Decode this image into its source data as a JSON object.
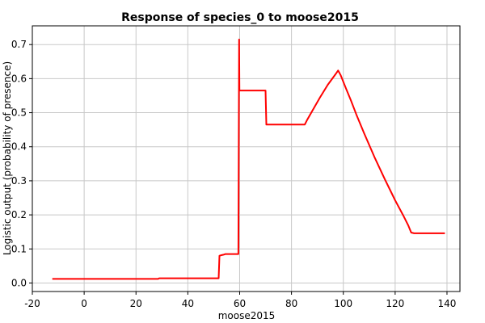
{
  "chart_data": {
    "type": "line",
    "title": "Response of species_0 to moose2015",
    "xlabel": "moose2015",
    "ylabel": "Logistic output (probability of presence)",
    "xlim": [
      -20,
      145
    ],
    "ylim": [
      -0.025,
      0.755
    ],
    "xticks": [
      -20,
      0,
      20,
      40,
      60,
      80,
      100,
      120,
      140
    ],
    "yticks": [
      0.0,
      0.1,
      0.2,
      0.3,
      0.4,
      0.5,
      0.6,
      0.7
    ],
    "ytick_labels": [
      "0.0",
      "0.1",
      "0.2",
      "0.3",
      "0.4",
      "0.5",
      "0.6",
      "0.7"
    ],
    "grid": true,
    "series_color": "#ff0000",
    "series": [
      {
        "x": [
          -12.3,
          28.6,
          28.9,
          51.9,
          52.2,
          53.1,
          53.8,
          54.5,
          59.5,
          59.8,
          59.9,
          60.1,
          70.0,
          70.3,
          85.1,
          86.0,
          88.0,
          91.0,
          94.0,
          97.0,
          98.0,
          99.0,
          101.0,
          103.0,
          105.0,
          108.0,
          112.0,
          116.0,
          120.0,
          123.0,
          125.0,
          126.2,
          127.3,
          139.2
        ],
        "y": [
          0.012,
          0.012,
          0.014,
          0.014,
          0.08,
          0.082,
          0.083,
          0.085,
          0.085,
          0.715,
          0.565,
          0.565,
          0.565,
          0.465,
          0.465,
          0.478,
          0.505,
          0.545,
          0.582,
          0.613,
          0.624,
          0.61,
          0.572,
          0.535,
          0.495,
          0.44,
          0.37,
          0.305,
          0.243,
          0.2,
          0.17,
          0.148,
          0.146,
          0.146
        ]
      }
    ]
  }
}
